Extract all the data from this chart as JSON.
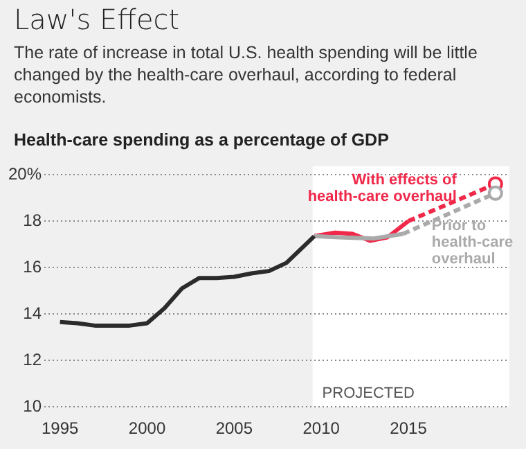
{
  "chart_data": {
    "type": "line",
    "title": "Law's Effect",
    "subtitle": "The rate of increase in total U.S. health spending will be little changed by the health-care overhaul, according to federal economists.",
    "ylabel": "Health-care spending as a percentage of GDP",
    "xlim": [
      1994.1,
      2020.8
    ],
    "xticks": [
      1995,
      2000,
      2005,
      2010,
      2015
    ],
    "ylim": [
      10,
      20
    ],
    "yticks": [
      10,
      12,
      14,
      16,
      18,
      {
        "value": 20,
        "label": "20%"
      }
    ],
    "grid": "y",
    "legend": false,
    "marker": "none",
    "line_style": "solid",
    "bands": [
      {
        "axis": "x",
        "from": 2009.5,
        "to": 2020.8,
        "label": "PROJECTED",
        "color": "#ffffff"
      }
    ],
    "series": [
      {
        "color": "#2b2b2b",
        "x": [
          1995,
          1996,
          1997,
          1998,
          1999,
          2000,
          2001,
          2002,
          2003,
          2004,
          2005,
          2006,
          2007,
          2008,
          2009.6
        ],
        "values": [
          13.65,
          13.6,
          13.5,
          13.5,
          13.5,
          13.6,
          14.25,
          15.1,
          15.55,
          15.55,
          15.6,
          15.75,
          15.85,
          16.2,
          17.35
        ]
      },
      {
        "color": "#aaaaaa",
        "x": [
          2009.6,
          2011,
          2013,
          2014.7
        ],
        "values": [
          17.35,
          17.3,
          17.25,
          17.45
        ]
      },
      {
        "color": "#aaaaaa",
        "line_style": "dashed",
        "x": [
          2014.7,
          2020
        ],
        "values": [
          17.45,
          19.2
        ]
      },
      {
        "name": "Prior to health-care overhaul",
        "type": "scatter",
        "marker": "circle",
        "color": "#aaaaaa",
        "x": [
          2020
        ],
        "values": [
          19.2
        ]
      },
      {
        "color": "#f0284a",
        "x": [
          2009.6,
          2010.8,
          2011.8,
          2012.8,
          2013.8,
          2015
        ],
        "values": [
          17.35,
          17.5,
          17.45,
          17.15,
          17.3,
          18.0
        ]
      },
      {
        "color": "#f0284a",
        "line_style": "dashed",
        "x": [
          2015,
          2020
        ],
        "values": [
          18.0,
          19.6
        ]
      },
      {
        "name": "With effects of health-care overhaul",
        "type": "scatter",
        "marker": "circle",
        "color": "#f0284a",
        "x": [
          2020
        ],
        "values": [
          19.6
        ]
      }
    ]
  }
}
